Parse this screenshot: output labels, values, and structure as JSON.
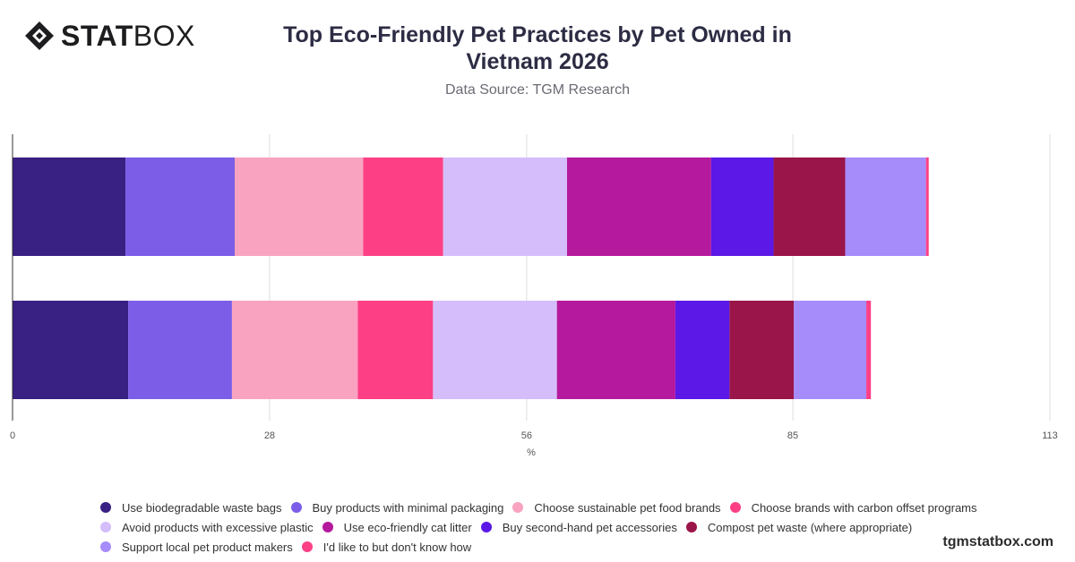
{
  "brand": {
    "logo_strong": "STAT",
    "logo_light": "BOX",
    "site": "tgmstatbox.com"
  },
  "header": {
    "title": "Top Eco-Friendly Pet Practices by Pet Owned in Vietnam 2026",
    "subtitle": "Data Source: TGM Research"
  },
  "chart_data": {
    "type": "bar",
    "orientation": "horizontal",
    "stacked": true,
    "categories": [
      "",
      ""
    ],
    "xlabel": "%",
    "xlim": [
      0,
      113
    ],
    "xticks": [
      0,
      28,
      56,
      85,
      113
    ],
    "grid": true,
    "legend_position": "bottom",
    "series": [
      {
        "name": "Use biodegradable waste bags",
        "color": "#392083",
        "values": [
          12.3,
          12.6
        ]
      },
      {
        "name": "Buy products with minimal packaging",
        "color": "#7b5de8",
        "values": [
          11.9,
          11.3
        ]
      },
      {
        "name": "Choose sustainable pet food brands",
        "color": "#f9a3c1",
        "values": [
          14.0,
          13.7
        ]
      },
      {
        "name": "Choose brands with carbon offset programs",
        "color": "#fd4086",
        "values": [
          8.7,
          8.2
        ]
      },
      {
        "name": "Avoid products with excessive plastic",
        "color": "#d4bdfa",
        "values": [
          13.5,
          13.5
        ]
      },
      {
        "name": "Use eco-friendly cat litter",
        "color": "#b5199d",
        "values": [
          15.7,
          12.9
        ]
      },
      {
        "name": "Buy second-hand pet accessories",
        "color": "#5b18e6",
        "values": [
          6.8,
          5.9
        ]
      },
      {
        "name": "Compost pet waste (where appropriate)",
        "color": "#9a1549",
        "values": [
          7.8,
          7.0
        ]
      },
      {
        "name": "Support local pet product makers",
        "color": "#a68bfb",
        "values": [
          8.8,
          7.9
        ]
      },
      {
        "name": "I'd like to but don't know how",
        "color": "#fd4086",
        "values": [
          0.3,
          0.5
        ]
      }
    ]
  }
}
